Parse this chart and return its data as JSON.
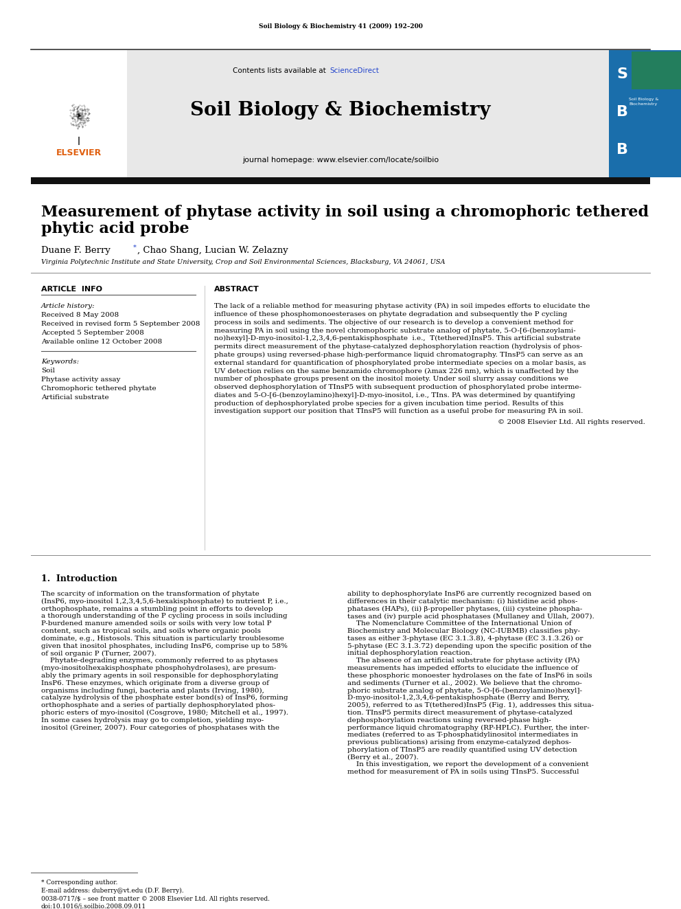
{
  "page_title": "Soil Biology & Biochemistry 41 (2009) 192–200",
  "journal_name": "Soil Biology & Biochemistry",
  "contents_line": "Contents lists available at ScienceDirect",
  "journal_homepage": "journal homepage: www.elsevier.com/locate/soilbio",
  "article_title_line1": "Measurement of phytase activity in soil using a chromophoric tethered",
  "article_title_line2": "phytic acid probe",
  "authors": "Duane F. Berry*, Chao Shang, Lucian W. Zelazny",
  "affiliation": "Virginia Polytechnic Institute and State University, Crop and Soil Environmental Sciences, Blacksburg, VA 24061, USA",
  "article_info_header": "ARTICLE  INFO",
  "abstract_header": "ABSTRACT",
  "article_history_label": "Article history:",
  "received": "Received 8 May 2008",
  "received_revised": "Received in revised form 5 September 2008",
  "accepted": "Accepted 5 September 2008",
  "available": "Available online 12 October 2008",
  "keywords_label": "Keywords:",
  "keywords": [
    "Soil",
    "Phytase activity assay",
    "Chromophoric tethered phytate",
    "Artificial substrate"
  ],
  "abstract_lines": [
    "The lack of a reliable method for measuring phytase activity (PA) in soil impedes efforts to elucidate the",
    "influence of these phosphomonoesterases on phytate degradation and subsequently the P cycling",
    "process in soils and sediments. The objective of our research is to develop a convenient method for",
    "measuring PA in soil using the novel chromophoric substrate analog of phytate, 5-O-[6-(benzoylami-",
    "no)hexyl]-D-myo-inositol-1,2,3,4,6-pentakisphosphate  i.e.,  T(tethered)InsP5. This artificial substrate",
    "permits direct measurement of the phytase-catalyzed dephosphorylation reaction (hydrolysis of phos-",
    "phate groups) using reversed-phase high-performance liquid chromatography. TInsP5 can serve as an",
    "external standard for quantification of phosphorylated probe intermediate species on a molar basis, as",
    "UV detection relies on the same benzamido chromophore (λmax 226 nm), which is unaffected by the",
    "number of phosphate groups present on the inositol moiety. Under soil slurry assay conditions we",
    "observed dephosphorylation of TInsP5 with subsequent production of phosphorylated probe interme-",
    "diates and 5-O-[6-(benzoylamino)hexyl]-D-myo-inositol, i.e., TIns. PA was determined by quantifying",
    "production of dephosphorylated probe species for a given incubation time period. Results of this",
    "investigation support our position that TInsP5 will function as a useful probe for measuring PA in soil."
  ],
  "copyright": "© 2008 Elsevier Ltd. All rights reserved.",
  "intro_header": "1.  Introduction",
  "intro_col1_lines": [
    "The scarcity of information on the transformation of phytate",
    "(InsP6, myo-inositol 1,2,3,4,5,6-hexakisphosphate) to nutrient P, i.e.,",
    "orthophosphate, remains a stumbling point in efforts to develop",
    "a thorough understanding of the P cycling process in soils including",
    "P-burdened manure amended soils or soils with very low total P",
    "content, such as tropical soils, and soils where organic pools",
    "dominate, e.g., Histosols. This situation is particularly troublesome",
    "given that inositol phosphates, including InsP6, comprise up to 58%",
    "of soil organic P (Turner, 2007).",
    "    Phytate-degrading enzymes, commonly referred to as phytases",
    "(myo-inositolhexakisphosphate phosphohydrolases), are presum-",
    "ably the primary agents in soil responsible for dephosphorylating",
    "InsP6. These enzymes, which originate from a diverse group of",
    "organisms including fungi, bacteria and plants (Irving, 1980),",
    "catalyze hydrolysis of the phosphate ester bond(s) of InsP6, forming",
    "orthophosphate and a series of partially dephosphorylated phos-",
    "phoric esters of myo-inositol (Cosgrove, 1980; Mitchell et al., 1997).",
    "In some cases hydrolysis may go to completion, yielding myo-",
    "inositol (Greiner, 2007). Four categories of phosphatases with the"
  ],
  "intro_col2_lines": [
    "ability to dephosphorylate InsP6 are currently recognized based on",
    "differences in their catalytic mechanism: (i) histidine acid phos-",
    "phatases (HAPs), (ii) β-propeller phytases, (iii) cysteine phospha-",
    "tases and (iv) purple acid phosphatases (Mullaney and Ullah, 2007).",
    "    The Nomenclature Committee of the International Union of",
    "Biochemistry and Molecular Biology (NC-IUBMB) classifies phy-",
    "tases as either 3-phytase (EC 3.1.3.8), 4-phytase (EC 3.1.3.26) or",
    "5-phytase (EC 3.1.3.72) depending upon the specific position of the",
    "initial dephosphorylation reaction.",
    "    The absence of an artificial substrate for phytase activity (PA)",
    "measurements has impeded efforts to elucidate the influence of",
    "these phosphoric monoester hydrolases on the fate of InsP6 in soils",
    "and sediments (Turner et al., 2002). We believe that the chromo-",
    "phoric substrate analog of phytate, 5-O-[6-(benzoylamino)hexyl]-",
    "D-myo-inositol-1,2,3,4,6-pentakisphosphate (Berry and Berry,",
    "2005), referred to as T(tethered)InsP5 (Fig. 1), addresses this situa-",
    "tion. TInsP5 permits direct measurement of phytase-catalyzed",
    "dephosphorylation reactions using reversed-phase high-",
    "performance liquid chromatography (RP-HPLC). Further, the inter-",
    "mediates (referred to as T-phosphatidylinositol intermediates in",
    "previous publications) arising from enzyme-catalyzed dephos-",
    "phorylation of TInsP5 are readily quantified using UV detection",
    "(Berry et al., 2007).",
    "    In this investigation, we report the development of a convenient",
    "method for measurement of PA in soils using TInsP5. Successful"
  ],
  "footnote1": "* Corresponding author.",
  "footnote2": "E-mail address: duberry@vt.edu (D.F. Berry).",
  "footnote3": "0038-0717/$ – see front matter © 2008 Elsevier Ltd. All rights reserved.",
  "footnote4": "doi:10.1016/j.soilbio.2008.09.011",
  "bg_color": "#ffffff",
  "header_bg": "#e8e8e8",
  "black_bar_color": "#111111",
  "orange_color": "#e06010",
  "blue_link_color": "#2244cc",
  "text_color": "#000000"
}
